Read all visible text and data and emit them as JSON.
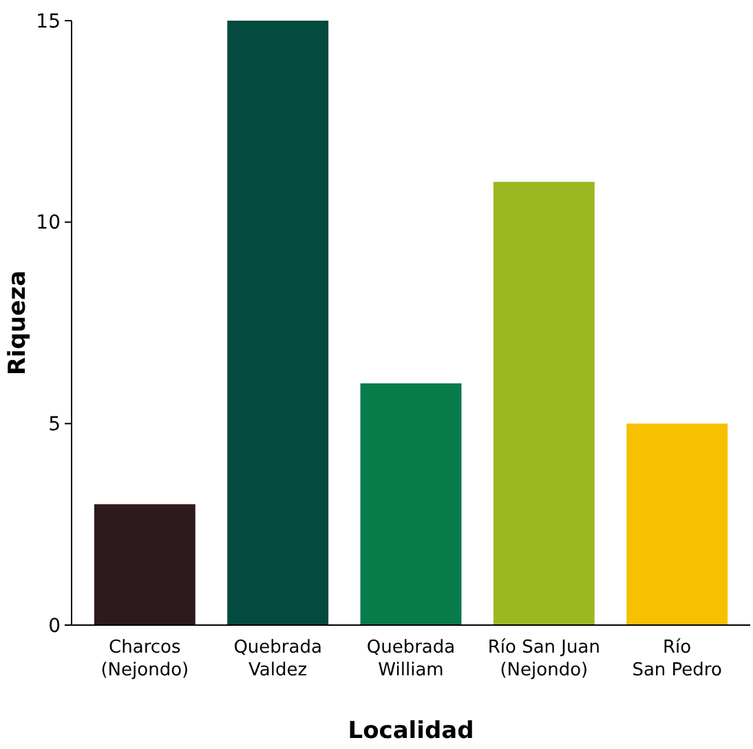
{
  "chart_data": {
    "type": "bar",
    "xlabel": "Localidad",
    "ylabel": "Riqueza",
    "categories": [
      "Charcos\n(Nejondo)",
      "Quebrada\nValdez",
      "Quebrada\nWilliam",
      "Río San Juan\n(Nejondo)",
      "Río\nSan Pedro"
    ],
    "values": [
      3,
      15,
      6,
      11,
      5
    ],
    "colors": [
      "#2e1a1c",
      "#044a3f",
      "#077c4a",
      "#9cb820",
      "#f7c000"
    ],
    "ylim": [
      0,
      15
    ],
    "yticks": [
      0,
      5,
      10,
      15
    ],
    "grid": false
  }
}
